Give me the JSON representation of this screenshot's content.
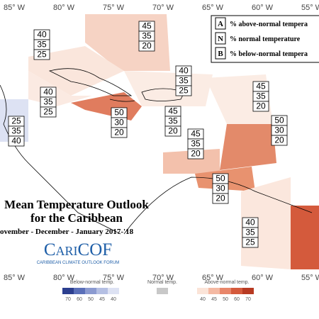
{
  "title": {
    "line1": "Mean Temperature Outlook",
    "line2": "for the Caribbean",
    "period": "ovember - December - January 2017-'18"
  },
  "logo": {
    "name": "CariCOF",
    "subtitle": "CARIBBEAN CLIMATE OUTLOOK FORUM"
  },
  "longitudes_top": [
    "85° W",
    "80° W",
    "75° W",
    "70° W",
    "65° W",
    "60° W",
    "55° W"
  ],
  "longitudes_bottom": [
    "85° W",
    "80° W",
    "75° W",
    "70° W",
    "65° W",
    "60° W",
    "55° W"
  ],
  "key": [
    {
      "letter": "A",
      "text": "% above-normal tempera"
    },
    {
      "letter": "N",
      "text": "% normal temperature"
    },
    {
      "letter": "B",
      "text": "% below-normal tempera"
    }
  ],
  "regions": [
    [
      "45",
      "35",
      "20"
    ],
    [
      "40",
      "35",
      "25"
    ],
    [
      "40",
      "35",
      "25"
    ],
    [
      "25",
      "35",
      "40"
    ],
    [
      "50",
      "30",
      "20"
    ],
    [
      "45",
      "35",
      "20"
    ],
    [
      "40",
      "35",
      "25"
    ],
    [
      "45",
      "35",
      "20"
    ],
    [
      "45",
      "35",
      "20"
    ],
    [
      "50",
      "30",
      "20"
    ],
    [
      "50",
      "30",
      "20"
    ],
    [
      "40",
      "35",
      "25"
    ]
  ],
  "colorbar": {
    "below_title": "Below-normal temp.",
    "below_labels": [
      "70",
      "60",
      "50",
      "45",
      "40"
    ],
    "normal_title": "Normal temp.",
    "above_title": "Above-normal temp.",
    "above_labels": [
      "40",
      "45",
      "50",
      "60",
      "70"
    ]
  }
}
